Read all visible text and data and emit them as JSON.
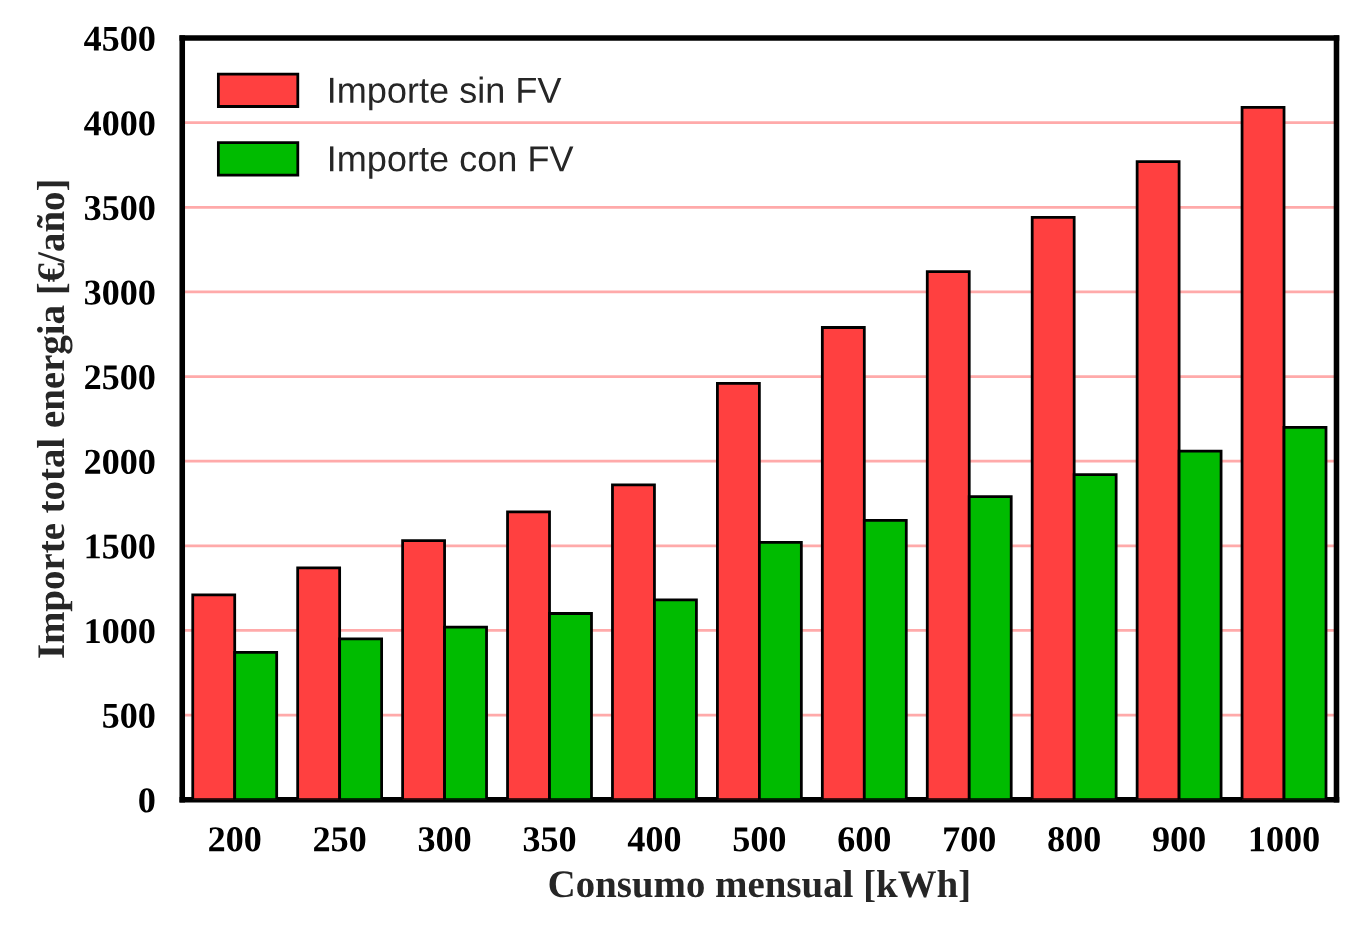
{
  "chart_data": {
    "type": "bar",
    "xlabel": "Consumo mensual [kWh]",
    "ylabel": "Importe total energia [€/año]",
    "categories": [
      "200",
      "250",
      "300",
      "350",
      "400",
      "500",
      "600",
      "700",
      "800",
      "900",
      "1000"
    ],
    "series": [
      {
        "name": "Importe sin FV",
        "color": "#ff4040",
        "values": [
          1210,
          1370,
          1530,
          1700,
          1860,
          2460,
          2790,
          3120,
          3440,
          3770,
          4090
        ]
      },
      {
        "name": "Importe con FV",
        "color": "#00bb00",
        "values": [
          870,
          950,
          1020,
          1100,
          1180,
          1520,
          1650,
          1790,
          1920,
          2060,
          2200
        ]
      }
    ],
    "ylim": [
      0,
      4500
    ],
    "yticks": [
      0,
      500,
      1000,
      1500,
      2000,
      2500,
      3000,
      3500,
      4000,
      4500
    ],
    "grid": "y",
    "legend": "top left"
  }
}
